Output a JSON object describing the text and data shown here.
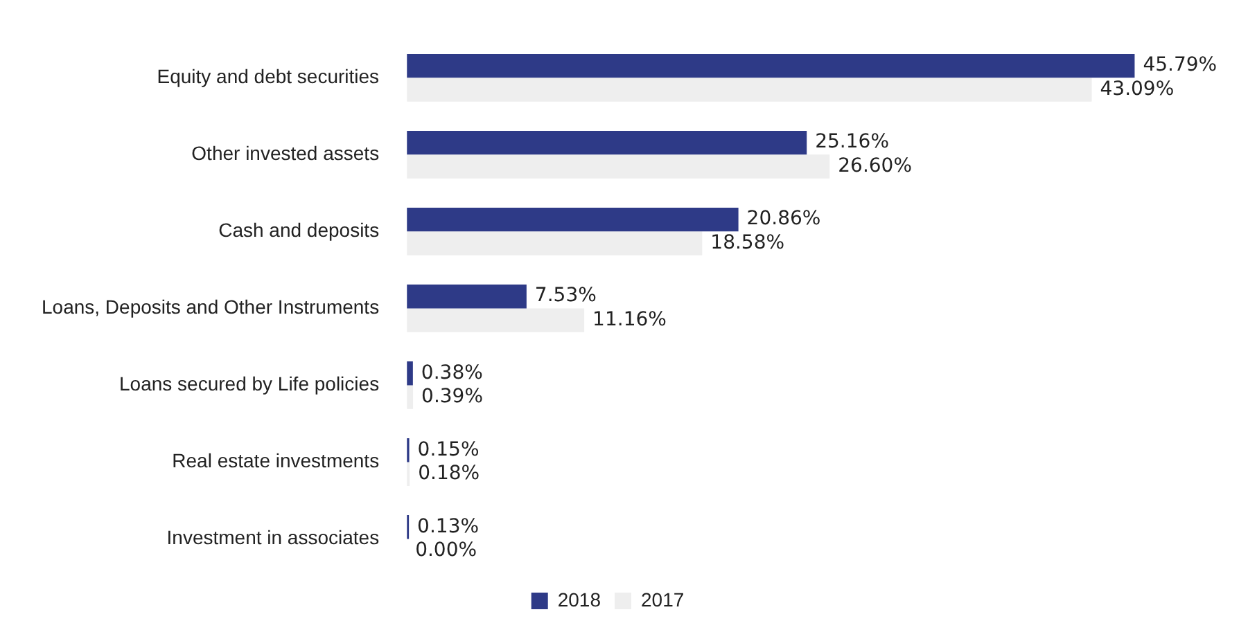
{
  "chart_data": {
    "type": "bar",
    "orientation": "horizontal",
    "categories": [
      "Equity and debt securities",
      "Other invested assets",
      "Cash and deposits",
      "Loans, Deposits and Other Instruments",
      "Loans secured by Life policies",
      "Real estate investments",
      "Investment in associates"
    ],
    "series": [
      {
        "name": "2018",
        "color": "#2e3a87",
        "values": [
          45.79,
          25.16,
          20.86,
          7.53,
          0.38,
          0.15,
          0.13
        ],
        "value_labels": [
          "45.79%",
          "25.16%",
          "20.86%",
          "7.53%",
          "0.38%",
          "0.15%",
          "0.13%"
        ]
      },
      {
        "name": "2017",
        "color": "#eeeeee",
        "values": [
          43.09,
          26.6,
          18.58,
          11.16,
          0.39,
          0.18,
          0.0
        ],
        "value_labels": [
          "43.09%",
          "26.60%",
          "18.58%",
          "11.16%",
          "0.39%",
          "0.18%",
          "0.00%"
        ]
      }
    ],
    "tick_labels": "y",
    "grid": false,
    "legend": "bottom"
  }
}
